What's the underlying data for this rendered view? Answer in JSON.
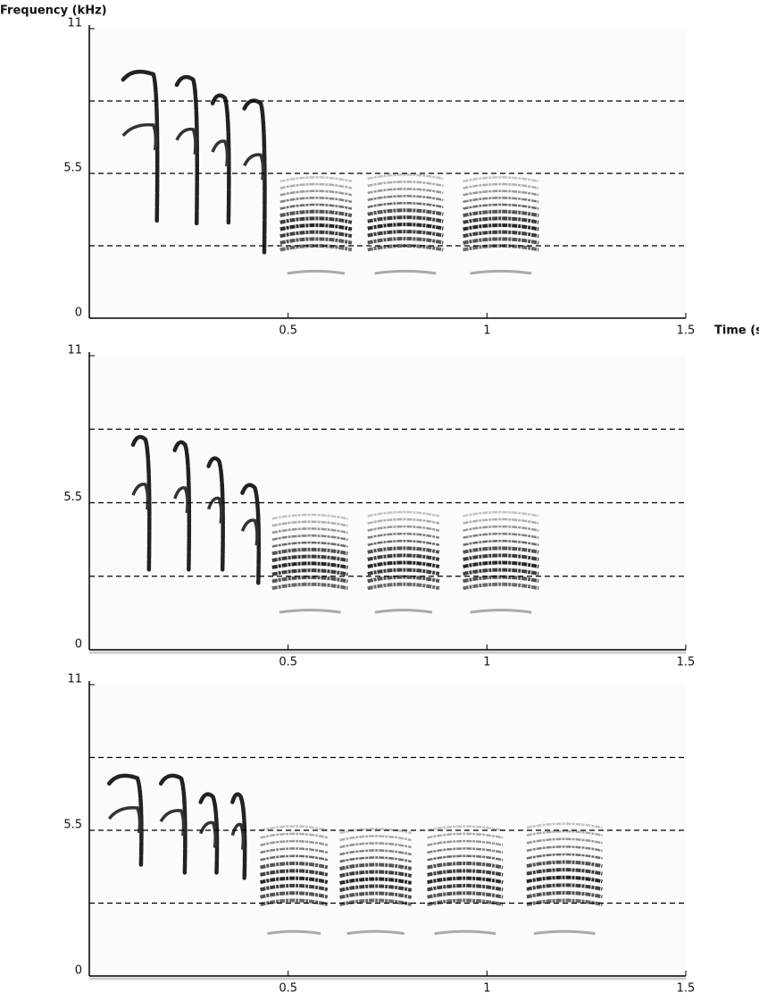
{
  "chart_data": [
    {
      "type": "spectrogram",
      "y_label": "Frequency (kHz)",
      "x_label": "Time (s)",
      "xlim": [
        0,
        1.5
      ],
      "xticks": [
        0.5,
        1,
        1.5
      ],
      "ylim": [
        0,
        11
      ],
      "yticks": [
        0,
        5.5,
        11
      ],
      "reference_lines": [
        2.75,
        5.5,
        8.25
      ],
      "sweeps": [
        {
          "t": [
            0.085,
            0.17
          ],
          "f": [
            9.4,
            3.7
          ]
        },
        {
          "t": [
            0.22,
            0.27
          ],
          "f": [
            9.2,
            3.6
          ]
        },
        {
          "t": [
            0.31,
            0.35
          ],
          "f": [
            8.5,
            3.6
          ]
        },
        {
          "t": [
            0.39,
            0.44
          ],
          "f": [
            8.3,
            2.5
          ]
        }
      ],
      "stacks": [
        {
          "t": [
            0.48,
            0.66
          ],
          "f": [
            2.7,
            5.3
          ],
          "band": 1.7
        },
        {
          "t": [
            0.7,
            0.89
          ],
          "f": [
            2.7,
            5.4
          ],
          "band": 1.7
        },
        {
          "t": [
            0.94,
            1.13
          ],
          "f": [
            2.7,
            5.3
          ],
          "band": 1.7
        }
      ]
    },
    {
      "type": "spectrogram",
      "xlim": [
        0,
        1.5
      ],
      "xticks": [
        0.5,
        1,
        1.5
      ],
      "ylim": [
        0,
        11
      ],
      "yticks": [
        0,
        5.5,
        11
      ],
      "reference_lines": [
        2.75,
        5.5,
        8.25
      ],
      "sweeps": [
        {
          "t": [
            0.11,
            0.15
          ],
          "f": [
            8.0,
            3.0
          ]
        },
        {
          "t": [
            0.215,
            0.25
          ],
          "f": [
            7.8,
            3.0
          ]
        },
        {
          "t": [
            0.3,
            0.335
          ],
          "f": [
            7.2,
            3.0
          ]
        },
        {
          "t": [
            0.385,
            0.425
          ],
          "f": [
            6.2,
            2.5
          ]
        }
      ],
      "stacks": [
        {
          "t": [
            0.46,
            0.65
          ],
          "f": [
            2.4,
            5.0
          ],
          "band": 1.4
        },
        {
          "t": [
            0.7,
            0.88
          ],
          "f": [
            2.4,
            5.1
          ],
          "band": 1.4
        },
        {
          "t": [
            0.94,
            1.13
          ],
          "f": [
            2.4,
            5.1
          ],
          "band": 1.4
        }
      ]
    },
    {
      "type": "spectrogram",
      "xlim": [
        0,
        1.5
      ],
      "xticks": [
        0.5,
        1,
        1.5
      ],
      "ylim": [
        0,
        11
      ],
      "yticks": [
        0,
        5.5,
        11
      ],
      "reference_lines": [
        2.75,
        5.5,
        8.25
      ],
      "sweeps": [
        {
          "t": [
            0.05,
            0.13
          ],
          "f": [
            7.6,
            4.2
          ]
        },
        {
          "t": [
            0.18,
            0.24
          ],
          "f": [
            7.6,
            3.9
          ]
        },
        {
          "t": [
            0.28,
            0.32
          ],
          "f": [
            6.9,
            3.9
          ]
        },
        {
          "t": [
            0.36,
            0.39
          ],
          "f": [
            6.9,
            3.7
          ]
        }
      ],
      "stacks": [
        {
          "t": [
            0.43,
            0.6
          ],
          "f": [
            2.8,
            5.6
          ],
          "band": 1.6
        },
        {
          "t": [
            0.63,
            0.81
          ],
          "f": [
            2.8,
            5.5
          ],
          "band": 1.6
        },
        {
          "t": [
            0.85,
            1.04
          ],
          "f": [
            2.8,
            5.6
          ],
          "band": 1.6
        },
        {
          "t": [
            1.1,
            1.29
          ],
          "f": [
            2.8,
            5.7
          ],
          "band": 1.6
        }
      ]
    }
  ]
}
